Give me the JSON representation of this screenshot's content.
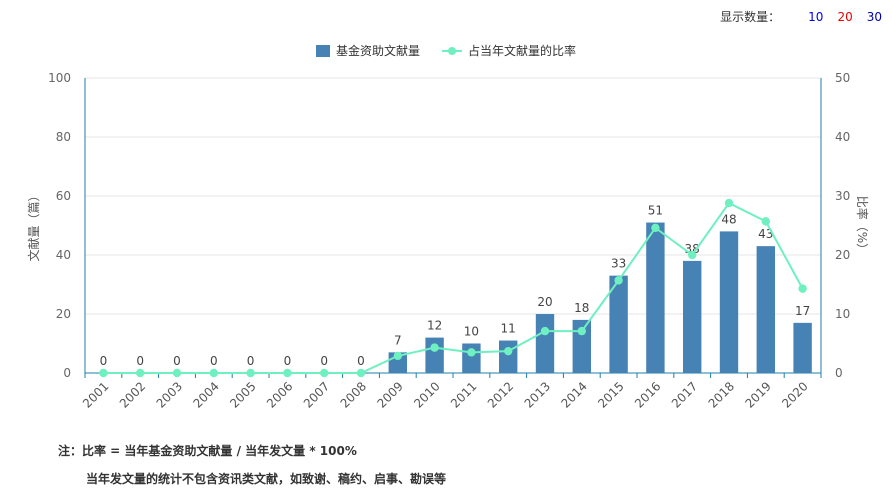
{
  "controls": {
    "label": "显示数量：",
    "options": [
      {
        "text": "10",
        "color": "#0000ee"
      },
      {
        "text": "20",
        "color": "#ee0000"
      },
      {
        "text": "30",
        "color": "#0000aa"
      }
    ]
  },
  "colors": {
    "bar": "#4682b4",
    "line": "#6ef0c0",
    "axis": "#1e7fa8",
    "grid": "#e6e6e6"
  },
  "chart_data": {
    "type": "bar",
    "categories": [
      "2001",
      "2002",
      "2003",
      "2004",
      "2005",
      "2006",
      "2007",
      "2008",
      "2009",
      "2010",
      "2011",
      "2012",
      "2013",
      "2014",
      "2015",
      "2016",
      "2017",
      "2018",
      "2019",
      "2020"
    ],
    "series": [
      {
        "name": "基金资助文献量",
        "type": "bar",
        "axis": "left",
        "values": [
          0,
          0,
          0,
          0,
          0,
          0,
          0,
          0,
          7,
          12,
          10,
          11,
          20,
          18,
          33,
          51,
          38,
          48,
          43,
          17
        ]
      },
      {
        "name": "占当年文献量的比率",
        "type": "line",
        "axis": "right",
        "values": [
          0,
          0,
          0,
          0,
          0,
          0,
          0,
          0,
          2.9,
          4.3,
          3.5,
          3.7,
          7.1,
          7.1,
          15.7,
          24.6,
          20.0,
          28.8,
          25.7,
          14.3
        ]
      }
    ],
    "ylabel": "文献量（篇）",
    "y2label": "比率（%）",
    "ylim": [
      0,
      100
    ],
    "y2lim": [
      0,
      50
    ],
    "yticks": [
      "0",
      "20",
      "40",
      "60",
      "80",
      "100"
    ],
    "y2ticks": [
      "0",
      "10",
      "20",
      "30",
      "40",
      "50"
    ],
    "grid": true,
    "legend": "top-center"
  },
  "notes": [
    "注：比率 = 当年基金资助文献量 / 当年发文量 * 100%",
    "当年发文量的统计不包含资讯类文献，如致谢、稿约、启事、勘误等"
  ]
}
